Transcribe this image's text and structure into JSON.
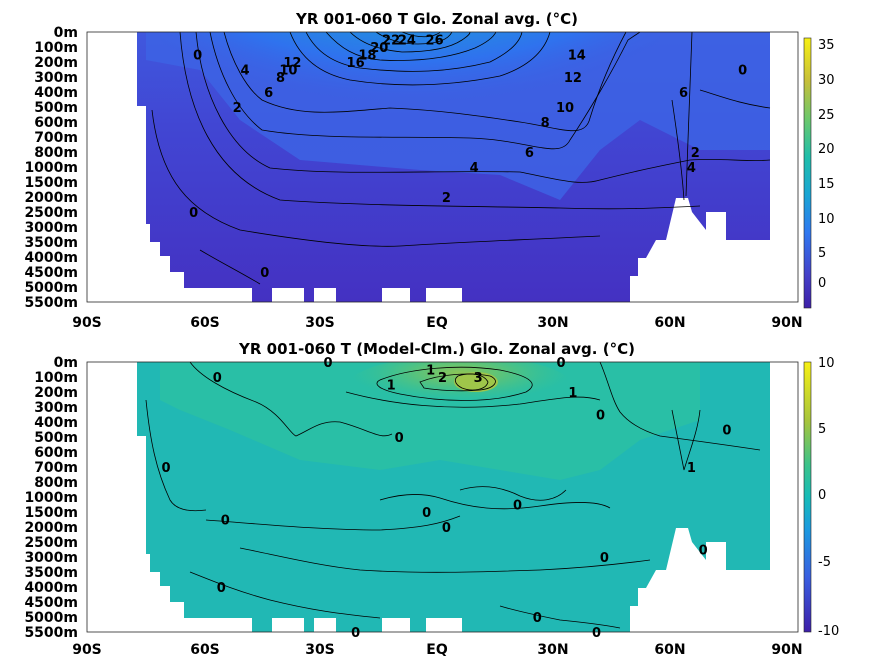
{
  "chart_data": [
    {
      "type": "heatmap",
      "title": "YR 001-060 T Glo. Zonal avg. (°C)",
      "x_ticks": [
        "90S",
        "60S",
        "30S",
        "EQ",
        "30N",
        "60N",
        "90N"
      ],
      "xlim": [
        -90,
        90
      ],
      "y_ticks": [
        "0m",
        "100m",
        "200m",
        "300m",
        "400m",
        "500m",
        "600m",
        "700m",
        "800m",
        "1000m",
        "1500m",
        "2000m",
        "2500m",
        "3000m",
        "3500m",
        "4000m",
        "4500m",
        "5000m",
        "5500m"
      ],
      "colorbar": {
        "ticks": [
          "35",
          "30",
          "25",
          "20",
          "15",
          "10",
          "5",
          "0"
        ],
        "range": [
          -3,
          36
        ]
      },
      "contour_labels": [
        {
          "text": "26",
          "lat": -2,
          "depth": "0-100m"
        },
        {
          "text": "24",
          "lat": -9,
          "depth": "0-100m"
        },
        {
          "text": "22",
          "lat": -13,
          "depth": "0-100m"
        },
        {
          "text": "20",
          "lat": -16,
          "depth": "100m"
        },
        {
          "text": "18",
          "lat": -19,
          "depth": "100-200m"
        },
        {
          "text": "16",
          "lat": -22,
          "depth": "200m"
        },
        {
          "text": "14",
          "lat": 34,
          "depth": "100-200m"
        },
        {
          "text": "12",
          "lat": -38,
          "depth": "200m"
        },
        {
          "text": "12",
          "lat": 33,
          "depth": "300m"
        },
        {
          "text": "10",
          "lat": -39,
          "depth": "200-300m"
        },
        {
          "text": "10",
          "lat": 31,
          "depth": "500m"
        },
        {
          "text": "8",
          "lat": -41,
          "depth": "300m"
        },
        {
          "text": "8",
          "lat": 26,
          "depth": "600m"
        },
        {
          "text": "6",
          "lat": -44,
          "depth": "400m"
        },
        {
          "text": "6",
          "lat": 22,
          "depth": "800m"
        },
        {
          "text": "6",
          "lat": 61,
          "depth": "400m"
        },
        {
          "text": "4",
          "lat": -50,
          "depth": "200-300m"
        },
        {
          "text": "4",
          "lat": 8,
          "depth": "1000m"
        },
        {
          "text": "4",
          "lat": 63,
          "depth": "1000m"
        },
        {
          "text": "2",
          "lat": -52,
          "depth": "500m"
        },
        {
          "text": "2",
          "lat": 1,
          "depth": "2000m"
        },
        {
          "text": "2",
          "lat": 64,
          "depth": "800m"
        },
        {
          "text": "0",
          "lat": -62,
          "depth": "100-200m"
        },
        {
          "text": "0",
          "lat": 76,
          "depth": "200-300m"
        },
        {
          "text": "0",
          "lat": -63,
          "depth": "2500m"
        },
        {
          "text": "0",
          "lat": -45,
          "depth": "4500m"
        }
      ]
    },
    {
      "type": "heatmap",
      "title": "YR 001-060 T (Model-Clm.) Glo. Zonal avg. (°C)",
      "x_ticks": [
        "90S",
        "60S",
        "30S",
        "EQ",
        "30N",
        "60N",
        "90N"
      ],
      "xlim": [
        -90,
        90
      ],
      "y_ticks": [
        "0m",
        "100m",
        "200m",
        "300m",
        "400m",
        "500m",
        "600m",
        "700m",
        "800m",
        "1000m",
        "1500m",
        "2000m",
        "2500m",
        "3000m",
        "3500m",
        "4000m",
        "4500m",
        "5000m",
        "5500m"
      ],
      "colorbar": {
        "ticks": [
          "10",
          "5",
          "0",
          "-5",
          "-10"
        ],
        "range": [
          -10,
          10
        ]
      },
      "contour_labels": [
        {
          "text": "0",
          "lat": -29,
          "depth": "0m"
        },
        {
          "text": "1",
          "lat": -3,
          "depth": "0-100m"
        },
        {
          "text": "2",
          "lat": 0,
          "depth": "100m"
        },
        {
          "text": "3",
          "lat": 9,
          "depth": "100m"
        },
        {
          "text": "0",
          "lat": 30,
          "depth": "0m"
        },
        {
          "text": "1",
          "lat": -13,
          "depth": "100-200m"
        },
        {
          "text": "1",
          "lat": 33,
          "depth": "200m"
        },
        {
          "text": "0",
          "lat": -57,
          "depth": "100m"
        },
        {
          "text": "0",
          "lat": 40,
          "depth": "300-400m"
        },
        {
          "text": "0",
          "lat": -11,
          "depth": "500m"
        },
        {
          "text": "0",
          "lat": 72,
          "depth": "400-500m"
        },
        {
          "text": "0",
          "lat": -70,
          "depth": "700m"
        },
        {
          "text": "1",
          "lat": 63,
          "depth": "700m"
        },
        {
          "text": "0",
          "lat": 19,
          "depth": "1000-1500m"
        },
        {
          "text": "0",
          "lat": -4,
          "depth": "1500m"
        },
        {
          "text": "0",
          "lat": -55,
          "depth": "1500-2000m"
        },
        {
          "text": "0",
          "lat": 1,
          "depth": "2000m"
        },
        {
          "text": "0",
          "lat": 41,
          "depth": "3000m"
        },
        {
          "text": "0",
          "lat": 66,
          "depth": "2500-3000m"
        },
        {
          "text": "0",
          "lat": -56,
          "depth": "4000m"
        },
        {
          "text": "0",
          "lat": 24,
          "depth": "5000m"
        },
        {
          "text": "0",
          "lat": -22,
          "depth": "5500m"
        },
        {
          "text": "0",
          "lat": 39,
          "depth": "5500m"
        }
      ]
    }
  ]
}
